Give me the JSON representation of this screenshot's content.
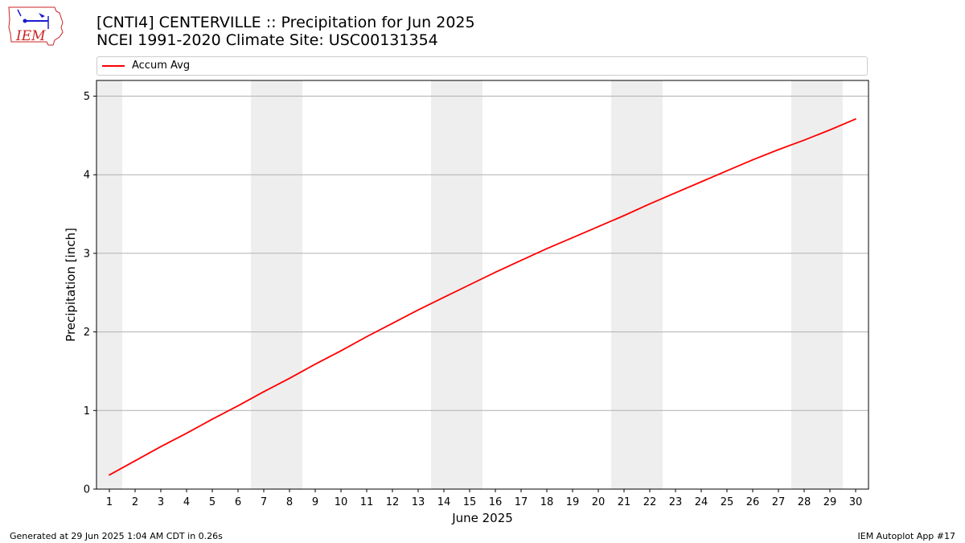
{
  "header": {
    "title_line1": "[CNTI4] CENTERVILLE :: Precipitation for Jun 2025",
    "title_line2": "NCEI 1991-2020 Climate Site: USC00131354"
  },
  "logo": {
    "text": "IEM",
    "icon": "iem-iowa-logo"
  },
  "footer": {
    "left": "Generated at 29 Jun 2025 1:04 AM CDT in 0.26s",
    "right": "IEM Autoplot App #17"
  },
  "colors": {
    "series": "#ff0000",
    "weekend_band": "#eeeeee",
    "grid": "#b0b0b0",
    "logo_red": "#cc2222",
    "logo_blue": "#1a1acc"
  },
  "chart_data": {
    "type": "line",
    "title": "[CNTI4] CENTERVILLE :: Precipitation for Jun 2025",
    "subtitle": "NCEI 1991-2020 Climate Site: USC00131354",
    "xlabel": "June 2025",
    "ylabel": "Precipitation [inch]",
    "x": [
      1,
      2,
      3,
      4,
      5,
      6,
      7,
      8,
      9,
      10,
      11,
      12,
      13,
      14,
      15,
      16,
      17,
      18,
      19,
      20,
      21,
      22,
      23,
      24,
      25,
      26,
      27,
      28,
      29,
      30
    ],
    "xlim": [
      0.5,
      30.5
    ],
    "ylim": [
      0,
      5.2
    ],
    "yticks": [
      0,
      1,
      2,
      3,
      4,
      5
    ],
    "xticks": [
      1,
      2,
      3,
      4,
      5,
      6,
      7,
      8,
      9,
      10,
      11,
      12,
      13,
      14,
      15,
      16,
      17,
      18,
      19,
      20,
      21,
      22,
      23,
      24,
      25,
      26,
      27,
      28,
      29,
      30
    ],
    "grid": "horizontal",
    "legend_position": "top",
    "weekend_bands": [
      [
        0.5,
        1.5
      ],
      [
        6.5,
        8.5
      ],
      [
        13.5,
        15.5
      ],
      [
        20.5,
        22.5
      ],
      [
        27.5,
        29.5
      ]
    ],
    "series": [
      {
        "name": "Accum Avg",
        "color": "#ff0000",
        "values": [
          0.18,
          0.36,
          0.54,
          0.71,
          0.89,
          1.06,
          1.24,
          1.41,
          1.59,
          1.76,
          1.94,
          2.11,
          2.28,
          2.44,
          2.6,
          2.76,
          2.91,
          3.06,
          3.2,
          3.34,
          3.48,
          3.63,
          3.77,
          3.91,
          4.05,
          4.19,
          4.32,
          4.44,
          4.57,
          4.71
        ]
      }
    ]
  }
}
